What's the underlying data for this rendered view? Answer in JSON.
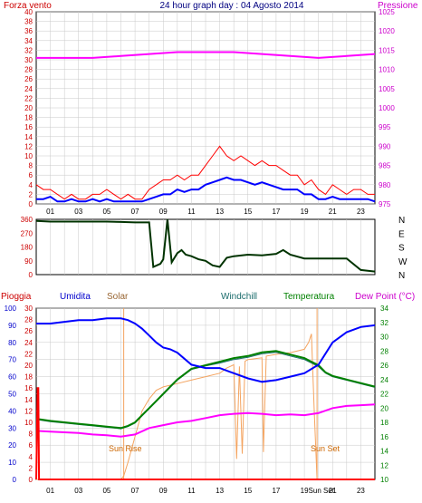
{
  "colors": {
    "background": "#ffffff",
    "plot_bg": "#ffffff",
    "grid": "#c8c8c8",
    "frame": "#000000",
    "wind_gust": "#ff0000",
    "wind_avg": "#0000ff",
    "pressure": "#ff00ff",
    "direction": "#003300",
    "rain": "#ff0000",
    "humidity": "#0000ff",
    "solar": "#f4a460",
    "windchill": "#1a6b6b",
    "temperature": "#008000",
    "dewpoint": "#ff00ff",
    "left_axis_label": "#cc0000",
    "right_axis_label": "#cc00cc",
    "left2_axis_label": "#0000cc",
    "solar_axis_label": "#996633",
    "temp_axis_label": "#008000",
    "sun_label": "#cc6600"
  },
  "chart_data": [
    {
      "type": "line",
      "panel": "wind_pressure",
      "title": "24 hour graph day : 04 Agosto 2014",
      "left_label": "Forza vento",
      "right_label": "Pressione",
      "left_ticks": [
        "0",
        "2",
        "4",
        "6",
        "8",
        "10",
        "12",
        "14",
        "16",
        "18",
        "20",
        "22",
        "24",
        "26",
        "28",
        "30",
        "32",
        "34",
        "36",
        "38",
        "40"
      ],
      "right_ticks": [
        "975",
        "980",
        "985",
        "990",
        "995",
        "1000",
        "1005",
        "1010",
        "1015",
        "1020",
        "1025"
      ],
      "x_ticks": [
        "01",
        "03",
        "05",
        "07",
        "09",
        "11",
        "13",
        "15",
        "17",
        "19",
        "21",
        "23"
      ],
      "ylim_left": [
        0,
        40
      ],
      "ylim_right": [
        975,
        1025
      ],
      "xlim": [
        0,
        24
      ],
      "gust": {
        "x": [
          0,
          0.5,
          1,
          1.5,
          2,
          2.5,
          3,
          3.5,
          4,
          4.5,
          5,
          5.5,
          6,
          6.5,
          7,
          7.5,
          8,
          8.5,
          9,
          9.5,
          10,
          10.5,
          11,
          11.5,
          12,
          12.5,
          13,
          13.5,
          14,
          14.5,
          15,
          15.5,
          16,
          16.5,
          17,
          17.5,
          18,
          18.5,
          19,
          19.5,
          20,
          20.5,
          21,
          21.5,
          22,
          22.5,
          23,
          23.5,
          24
        ],
        "values": [
          4,
          3,
          3,
          2,
          1,
          2,
          1,
          1,
          2,
          2,
          3,
          2,
          1,
          2,
          1,
          1,
          3,
          4,
          5,
          5,
          6,
          5,
          6,
          6,
          8,
          10,
          12,
          10,
          9,
          10,
          9,
          8,
          9,
          8,
          8,
          7,
          6,
          6,
          4,
          5,
          3,
          2,
          4,
          3,
          2,
          3,
          3,
          2,
          2
        ]
      },
      "average": {
        "x": [
          0,
          0.5,
          1,
          1.5,
          2,
          2.5,
          3,
          3.5,
          4,
          4.5,
          5,
          5.5,
          6,
          6.5,
          7,
          7.5,
          8,
          8.5,
          9,
          9.5,
          10,
          10.5,
          11,
          11.5,
          12,
          12.5,
          13,
          13.5,
          14,
          14.5,
          15,
          15.5,
          16,
          16.5,
          17,
          17.5,
          18,
          18.5,
          19,
          19.5,
          20,
          20.5,
          21,
          21.5,
          22,
          22.5,
          23,
          23.5,
          24
        ],
        "values": [
          1,
          1,
          1.5,
          0.5,
          0.5,
          1,
          0.5,
          0.5,
          1,
          0.5,
          1,
          0.5,
          0.5,
          0.5,
          0.5,
          0.5,
          1,
          1.5,
          2,
          2,
          3,
          2.5,
          3,
          3,
          4,
          4.5,
          5,
          5.5,
          5,
          5,
          4.5,
          4,
          4.5,
          4,
          3.5,
          3,
          3,
          3,
          2,
          2,
          1,
          1,
          1.5,
          1,
          1,
          1,
          1,
          1,
          0.5
        ]
      },
      "pressure": {
        "x": [
          0,
          2,
          4,
          6,
          8,
          10,
          12,
          14,
          16,
          18,
          20,
          22,
          24
        ],
        "values": [
          1013,
          1013,
          1013,
          1013.5,
          1014,
          1014.5,
          1014.5,
          1014.5,
          1014,
          1013.5,
          1013,
          1013.5,
          1014
        ]
      }
    },
    {
      "type": "line",
      "panel": "wind_direction",
      "left_ticks": [
        "0",
        "90",
        "180",
        "270",
        "360"
      ],
      "right_labels": [
        "N",
        "W",
        "S",
        "E",
        "N"
      ],
      "ylim": [
        0,
        360
      ],
      "xlim": [
        0,
        24
      ],
      "direction": {
        "x": [
          0,
          1,
          2,
          3,
          4,
          5,
          6,
          7,
          7.5,
          8,
          8.3,
          8.8,
          9,
          9.3,
          9.6,
          10,
          10.3,
          10.6,
          11,
          11.5,
          12,
          12.5,
          13,
          13.5,
          14,
          15,
          16,
          17,
          17.5,
          18,
          19,
          20,
          21,
          22,
          23,
          24
        ],
        "values": [
          350,
          345,
          345,
          345,
          345,
          345,
          343,
          340,
          340,
          340,
          50,
          70,
          100,
          360,
          80,
          140,
          160,
          130,
          120,
          100,
          90,
          60,
          50,
          110,
          120,
          130,
          125,
          135,
          160,
          130,
          105,
          105,
          105,
          105,
          30,
          20
        ]
      }
    },
    {
      "type": "line",
      "panel": "rain_hum_temp",
      "labels": {
        "rain": "Pioggia",
        "humidity": "Umidita",
        "solar": "Solar",
        "windchill": "Windchill",
        "temperature": "Temperatura",
        "dewpoint": "Dew Point (°C)"
      },
      "hum_ticks": [
        "0",
        "10",
        "20",
        "30",
        "40",
        "50",
        "60",
        "70",
        "80",
        "90",
        "100"
      ],
      "rain_ticks": [
        "0",
        "2",
        "4",
        "6",
        "8",
        "10",
        "12",
        "14",
        "16",
        "18",
        "20",
        "22",
        "24",
        "26",
        "28",
        "30"
      ],
      "temp_ticks": [
        "10",
        "12",
        "14",
        "16",
        "18",
        "20",
        "22",
        "24",
        "26",
        "28",
        "30",
        "32",
        "34"
      ],
      "x_ticks": [
        "01",
        "03",
        "05",
        "07",
        "09",
        "11",
        "13",
        "15",
        "17",
        "19",
        "Sun Set",
        "21",
        "23"
      ],
      "ylim_hum": [
        0,
        100
      ],
      "ylim_temp": [
        10,
        34
      ],
      "xlim": [
        0,
        24
      ],
      "sun_rise_label": "Sun Rise",
      "sun_set_label": "Sun Set",
      "sun_rise_hour": 6.2,
      "sun_set_hour": 19.9,
      "humidity": {
        "x": [
          0,
          1,
          2,
          3,
          4,
          5,
          6,
          6.5,
          7,
          7.5,
          8,
          8.5,
          9,
          9.5,
          10,
          11,
          12,
          13,
          14,
          15,
          16,
          17,
          18,
          19,
          20,
          21,
          22,
          23,
          24
        ],
        "values": [
          91,
          91,
          92,
          93,
          93,
          94,
          94,
          93,
          91,
          88,
          84,
          80,
          77,
          76,
          74,
          67,
          65,
          65,
          62,
          59,
          57,
          58,
          60,
          62,
          67,
          80,
          86,
          89,
          90
        ]
      },
      "temperature": {
        "x": [
          0,
          1,
          2,
          3,
          4,
          5,
          6,
          6.5,
          7,
          7.5,
          8,
          8.5,
          9,
          9.5,
          10,
          11,
          12,
          13,
          14,
          15,
          16,
          17,
          18,
          19,
          19.5,
          20,
          20.5,
          21,
          22,
          23,
          24
        ],
        "values": [
          18.5,
          18.2,
          18,
          17.8,
          17.6,
          17.4,
          17.2,
          17.5,
          18,
          19,
          20,
          21,
          22,
          23,
          24,
          25.5,
          26,
          26.5,
          27,
          27.3,
          27.8,
          28,
          27.5,
          27,
          26.5,
          26,
          25,
          24.5,
          24,
          23.5,
          23
        ]
      },
      "windchill": {
        "x": [
          0,
          1,
          2,
          3,
          4,
          5,
          6,
          6.5,
          7,
          7.5,
          8,
          8.5,
          9,
          9.5,
          10,
          11,
          12,
          13,
          14,
          15,
          16,
          17,
          18,
          19,
          19.5,
          20,
          20.5,
          21,
          22,
          23,
          24
        ],
        "values": [
          18.4,
          18.1,
          17.9,
          17.7,
          17.5,
          17.3,
          17.1,
          17.4,
          17.9,
          18.9,
          19.9,
          20.9,
          21.9,
          22.9,
          23.9,
          25.4,
          25.9,
          26.3,
          26.8,
          27.1,
          27.6,
          27.8,
          27.3,
          26.8,
          26.3,
          25.8,
          24.9,
          24.4,
          23.9,
          23.4,
          22.9
        ]
      },
      "dewpoint": {
        "x": [
          0,
          1,
          2,
          3,
          4,
          5,
          6,
          7,
          8,
          9,
          10,
          11,
          12,
          13,
          14,
          15,
          16,
          17,
          18,
          19,
          20,
          21,
          22,
          23,
          24
        ],
        "values": [
          16.8,
          16.7,
          16.6,
          16.5,
          16.3,
          16.2,
          16.0,
          16.3,
          17.2,
          17.6,
          18,
          18.2,
          18.6,
          19.0,
          19.2,
          19.3,
          19.2,
          19.0,
          19.1,
          19.0,
          19.3,
          20,
          20.3,
          20.4,
          20.5
        ]
      },
      "solar": {
        "x": [
          0,
          6,
          6.2,
          6.5,
          7,
          7.5,
          8,
          8.5,
          9,
          10,
          11,
          12,
          13,
          13.5,
          14,
          14.2,
          14.4,
          14.6,
          14.8,
          15,
          16,
          16.1,
          16.3,
          17,
          18,
          19,
          19.3,
          19.5,
          19.7,
          19.9,
          20,
          21,
          24
        ],
        "values": [
          0,
          0,
          20,
          100,
          250,
          400,
          470,
          520,
          540,
          560,
          580,
          600,
          620,
          650,
          670,
          120,
          660,
          150,
          690,
          700,
          710,
          160,
          720,
          730,
          740,
          760,
          800,
          850,
          400,
          0,
          0,
          0,
          0
        ]
      },
      "rain": {
        "x": [
          0,
          0.1,
          0.15,
          0.2,
          24
        ],
        "values": [
          0,
          16,
          16,
          0,
          0
        ]
      }
    }
  ]
}
